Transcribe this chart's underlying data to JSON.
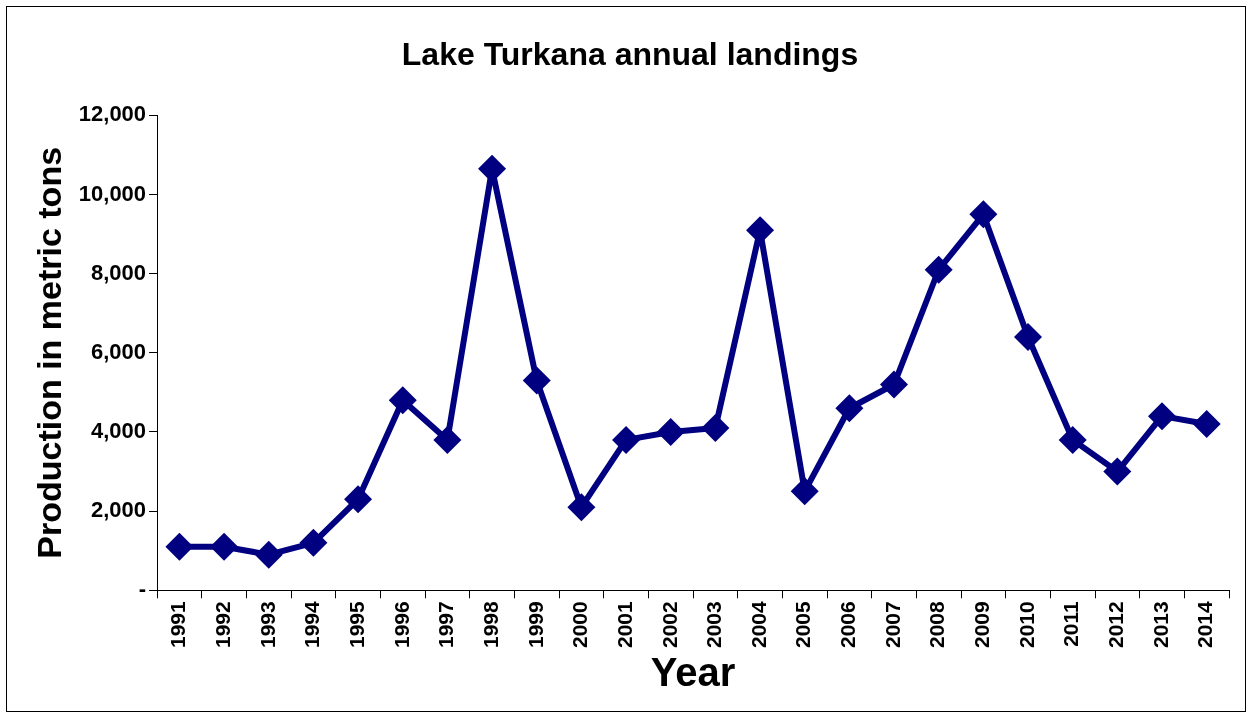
{
  "chart_data": {
    "type": "line",
    "title": "Lake Turkana annual landings",
    "xlabel": "Year",
    "ylabel": "Production in metric tons",
    "categories": [
      "1991",
      "1992",
      "1993",
      "1994",
      "1995",
      "1996",
      "1997",
      "1998",
      "1999",
      "2000",
      "2001",
      "2002",
      "2003",
      "2004",
      "2005",
      "2006",
      "2007",
      "2008",
      "2009",
      "2010",
      "2011",
      "2012",
      "2013",
      "2014"
    ],
    "series": [
      {
        "color": "#000080",
        "values": [
          1100,
          1100,
          900,
          1200,
          2300,
          4800,
          3800,
          10650,
          5300,
          2100,
          3800,
          4000,
          4100,
          9100,
          2500,
          4600,
          5200,
          8100,
          9500,
          6400,
          3800,
          3000,
          4400,
          4200
        ]
      }
    ],
    "ylim": [
      0,
      12000
    ],
    "yticks": [
      {
        "value": 0,
        "label": "-"
      },
      {
        "value": 2000,
        "label": "2,000"
      },
      {
        "value": 4000,
        "label": "4,000"
      },
      {
        "value": 6000,
        "label": "6,000"
      },
      {
        "value": 8000,
        "label": "8,000"
      },
      {
        "value": 10000,
        "label": "10,000"
      },
      {
        "value": 12000,
        "label": "12,000"
      }
    ],
    "grid": false,
    "legend": false,
    "marker": "diamond",
    "line_style": "solid"
  }
}
